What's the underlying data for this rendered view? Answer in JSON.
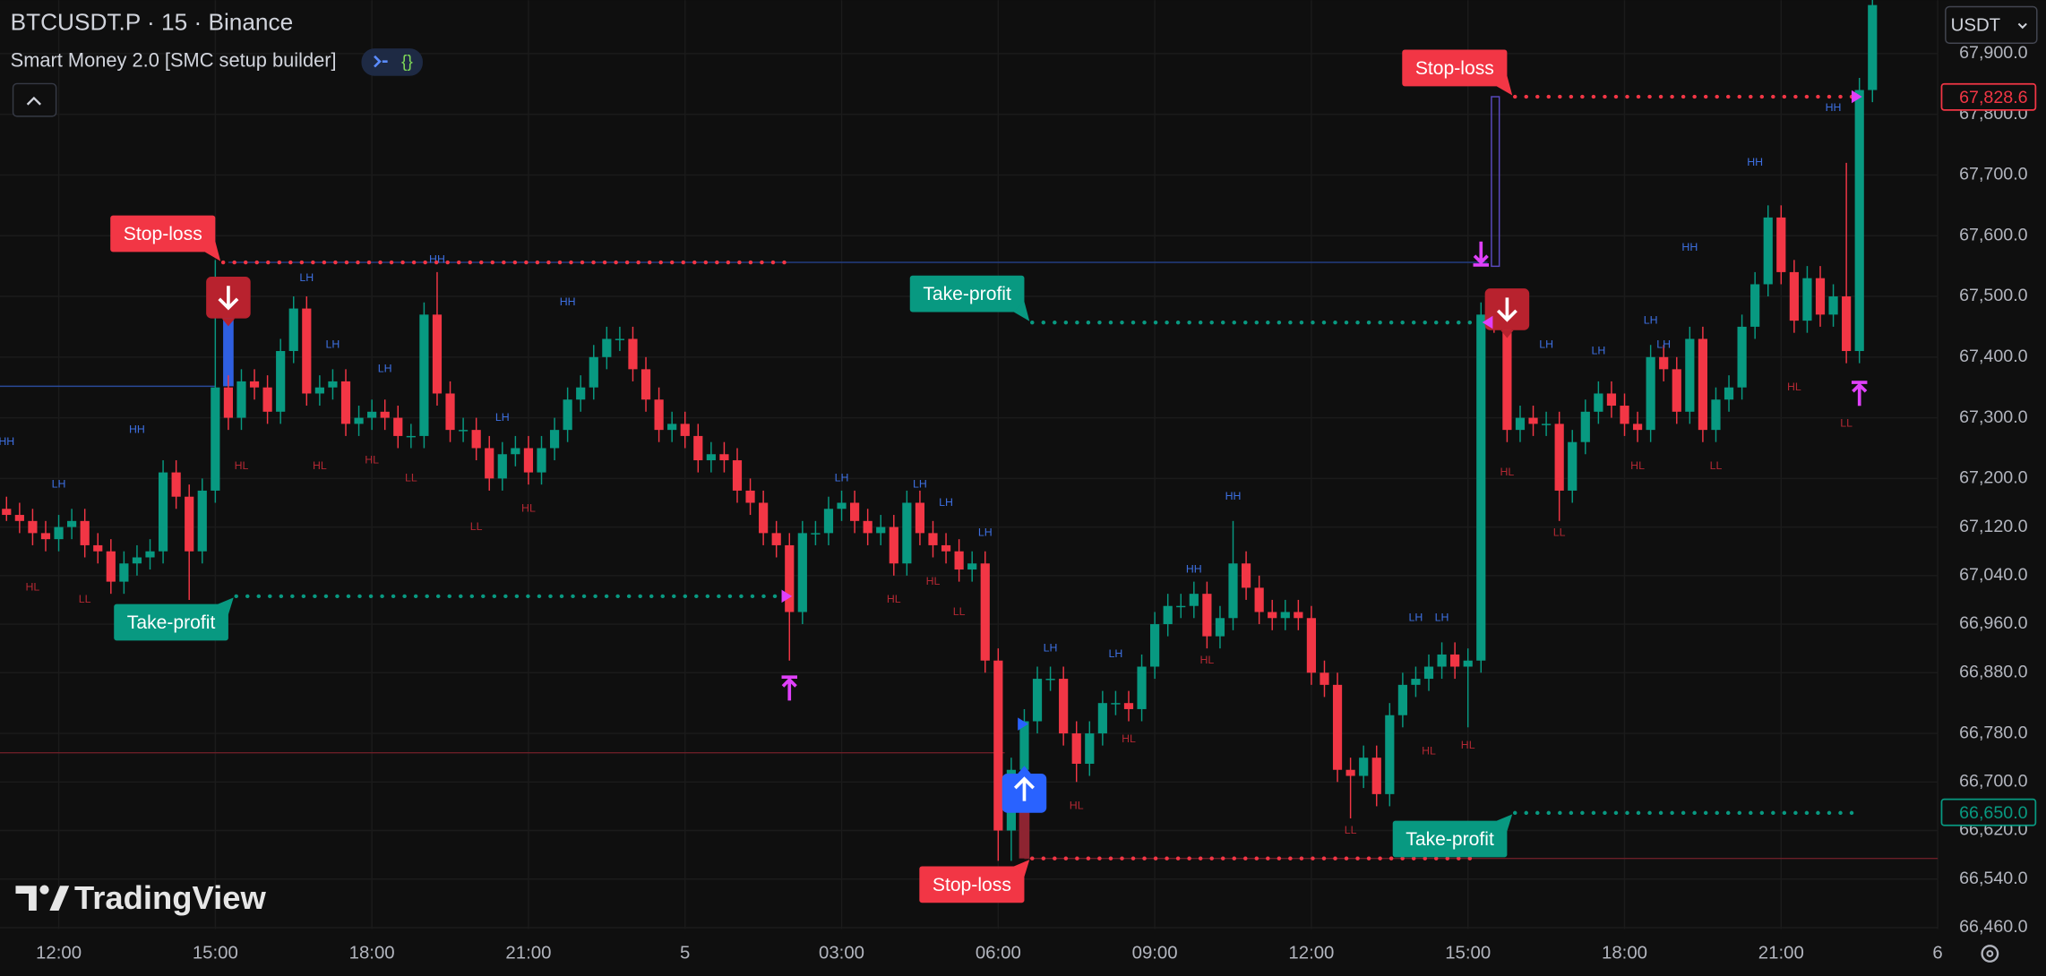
{
  "header": {
    "symbol": "BTCUSDT.P · 15 · Binance",
    "indicator": "Smart Money 2.0 [SMC setup builder]",
    "currency": "USDT",
    "watermark": "TradingView"
  },
  "chart_data": {
    "type": "candlestick",
    "up_color": "#089981",
    "down_color": "#f23645",
    "grid": true,
    "xlim": [
      -0.5,
      148
    ],
    "ylim": [
      66458,
      67988
    ],
    "xticks": [
      {
        "value": 4,
        "label": "12:00"
      },
      {
        "value": 16,
        "label": "15:00"
      },
      {
        "value": 28,
        "label": "18:00"
      },
      {
        "value": 40,
        "label": "21:00"
      },
      {
        "value": 52,
        "label": "5"
      },
      {
        "value": 64,
        "label": "03:00"
      },
      {
        "value": 76,
        "label": "06:00"
      },
      {
        "value": 88,
        "label": "09:00"
      },
      {
        "value": 100,
        "label": "12:00"
      },
      {
        "value": 112,
        "label": "15:00"
      },
      {
        "value": 124,
        "label": "18:00"
      },
      {
        "value": 136,
        "label": "21:00"
      },
      {
        "value": 148,
        "label": "6"
      }
    ],
    "yticks": [
      {
        "value": 67900,
        "label": "67,900.0"
      },
      {
        "value": 67800,
        "label": "67,800.0"
      },
      {
        "value": 67700,
        "label": "67,700.0"
      },
      {
        "value": 67600,
        "label": "67,600.0"
      },
      {
        "value": 67500,
        "label": "67,500.0"
      },
      {
        "value": 67400,
        "label": "67,400.0"
      },
      {
        "value": 67300,
        "label": "67,300.0"
      },
      {
        "value": 67200,
        "label": "67,200.0"
      },
      {
        "value": 67120,
        "label": "67,120.0"
      },
      {
        "value": 67040,
        "label": "67,040.0"
      },
      {
        "value": 66960,
        "label": "66,960.0"
      },
      {
        "value": 66880,
        "label": "66,880.0"
      },
      {
        "value": 66780,
        "label": "66,780.0"
      },
      {
        "value": 66700,
        "label": "66,700.0"
      },
      {
        "value": 66620,
        "label": "66,620.0"
      },
      {
        "value": 66540,
        "label": "66,540.0"
      },
      {
        "value": 66460,
        "label": "66,460.0"
      }
    ],
    "open": [
      67150,
      67140,
      67130,
      67110,
      67100,
      67120,
      67130,
      67090,
      67080,
      67030,
      67060,
      67070,
      67080,
      67210,
      67170,
      67080,
      67180,
      67350,
      67300,
      67360,
      67350,
      67310,
      67410,
      67480,
      67340,
      67350,
      67360,
      67290,
      67300,
      67310,
      67300,
      67270,
      67270,
      67470,
      67340,
      67280,
      67280,
      67250,
      67200,
      67240,
      67250,
      67210,
      67250,
      67280,
      67330,
      67350,
      67400,
      67430,
      67430,
      67380,
      67330,
      67280,
      67290,
      67270,
      67230,
      67240,
      67230,
      67180,
      67160,
      67110,
      67090,
      66980,
      67110,
      67110,
      67150,
      67160,
      67130,
      67110,
      67120,
      67060,
      67160,
      67110,
      67090,
      67080,
      67050,
      67060,
      66900,
      66620,
      66720,
      66800,
      66870,
      66870,
      66780,
      66730,
      66780,
      66830,
      66830,
      66820,
      66890,
      66960,
      66990,
      66990,
      67010,
      66940,
      66970,
      67060,
      67020,
      66980,
      66970,
      66980,
      66970,
      66880,
      66860,
      66720,
      66710,
      66740,
      66680,
      66810,
      66860,
      66870,
      66890,
      66910,
      66890,
      66900,
      67470,
      67460,
      67280,
      67300,
      67290,
      67290,
      67180,
      67260,
      67310,
      67340,
      67320,
      67290,
      67280,
      67400,
      67380,
      67310,
      67430,
      67280,
      67330,
      67350,
      67450,
      67520,
      67630,
      67540,
      67460,
      67530,
      67470,
      67500,
      67410,
      67840
    ],
    "high": [
      67170,
      67160,
      67150,
      67130,
      67140,
      67150,
      67150,
      67110,
      67100,
      67080,
      67090,
      67100,
      67230,
      67230,
      67190,
      67200,
      67560,
      67370,
      67380,
      67380,
      67370,
      67430,
      67500,
      67500,
      67370,
      67380,
      67380,
      67320,
      67330,
      67330,
      67320,
      67290,
      67490,
      67540,
      67360,
      67300,
      67300,
      67270,
      67260,
      67270,
      67270,
      67270,
      67300,
      67350,
      67370,
      67420,
      67450,
      67450,
      67450,
      67400,
      67350,
      67310,
      67310,
      67290,
      67260,
      67260,
      67250,
      67200,
      67180,
      67130,
      67110,
      67130,
      67130,
      67170,
      67180,
      67180,
      67150,
      67140,
      67140,
      67180,
      67180,
      67130,
      67110,
      67100,
      67080,
      67080,
      66920,
      66740,
      66820,
      66890,
      66890,
      66890,
      66800,
      66800,
      66850,
      66850,
      66850,
      66910,
      66980,
      67010,
      67010,
      67030,
      67030,
      66990,
      67130,
      67080,
      67040,
      67000,
      67000,
      67000,
      66990,
      66900,
      66880,
      66740,
      66760,
      66760,
      66830,
      66880,
      66890,
      66910,
      66930,
      66930,
      66920,
      67490,
      67490,
      67480,
      67320,
      67320,
      67310,
      67310,
      67280,
      67330,
      67360,
      67360,
      67340,
      67310,
      67420,
      67420,
      67400,
      67450,
      67450,
      67350,
      67370,
      67470,
      67540,
      67650,
      67650,
      67560,
      67550,
      67550,
      67520,
      67720,
      67860,
      68000
    ],
    "low": [
      67130,
      67110,
      67090,
      67080,
      67080,
      67100,
      67070,
      67060,
      67010,
      67010,
      67040,
      67050,
      67060,
      67150,
      67000,
      67060,
      67160,
      67280,
      67280,
      67330,
      67290,
      67290,
      67390,
      67320,
      67320,
      67330,
      67270,
      67270,
      67280,
      67280,
      67250,
      67250,
      67250,
      67320,
      67260,
      67260,
      67230,
      67180,
      67180,
      67220,
      67190,
      67190,
      67230,
      67260,
      67310,
      67330,
      67380,
      67410,
      67360,
      67310,
      67260,
      67260,
      67250,
      67210,
      67210,
      67210,
      67160,
      67140,
      67090,
      67070,
      66900,
      66960,
      67090,
      67090,
      67130,
      67110,
      67090,
      67090,
      67040,
      67040,
      67090,
      67070,
      67060,
      67030,
      67030,
      66880,
      66570,
      66570,
      66700,
      66780,
      66850,
      66760,
      66700,
      66710,
      66760,
      66810,
      66800,
      66800,
      66870,
      66940,
      66970,
      66970,
      66920,
      66920,
      66950,
      67000,
      66960,
      66950,
      66950,
      66950,
      66860,
      66840,
      66700,
      66640,
      66690,
      66660,
      66660,
      66790,
      66840,
      66850,
      66870,
      66870,
      66790,
      66880,
      67440,
      67260,
      67260,
      67270,
      67270,
      67130,
      67160,
      67240,
      67290,
      67300,
      67270,
      67260,
      67260,
      67360,
      67290,
      67290,
      67260,
      67260,
      67310,
      67330,
      67430,
      67500,
      67520,
      67440,
      67440,
      67450,
      67450,
      67390,
      67390,
      67820
    ],
    "close": [
      67140,
      67130,
      67110,
      67100,
      67120,
      67130,
      67090,
      67080,
      67030,
      67060,
      67070,
      67080,
      67210,
      67170,
      67080,
      67180,
      67350,
      67300,
      67360,
      67350,
      67310,
      67410,
      67480,
      67340,
      67350,
      67360,
      67290,
      67300,
      67310,
      67300,
      67270,
      67270,
      67470,
      67340,
      67280,
      67280,
      67250,
      67200,
      67240,
      67250,
      67210,
      67250,
      67280,
      67330,
      67350,
      67400,
      67430,
      67430,
      67380,
      67330,
      67280,
      67290,
      67270,
      67230,
      67240,
      67230,
      67180,
      67160,
      67110,
      67090,
      66980,
      67110,
      67110,
      67150,
      67160,
      67130,
      67110,
      67120,
      67060,
      67160,
      67110,
      67090,
      67080,
      67050,
      67060,
      66900,
      66620,
      66720,
      66800,
      66870,
      66870,
      66780,
      66730,
      66780,
      66830,
      66830,
      66820,
      66890,
      66960,
      66990,
      66990,
      67010,
      66940,
      66970,
      67060,
      67020,
      66980,
      66970,
      66980,
      66970,
      66880,
      66860,
      66720,
      66710,
      66740,
      66680,
      66810,
      66860,
      66870,
      66890,
      66910,
      66890,
      66900,
      67470,
      67460,
      67280,
      67300,
      67290,
      67290,
      67180,
      67260,
      67310,
      67340,
      67320,
      67290,
      67280,
      67400,
      67380,
      67310,
      67430,
      67280,
      67330,
      67350,
      67450,
      67520,
      67630,
      67540,
      67460,
      67530,
      67470,
      67500,
      67410,
      67840,
      67980
    ],
    "price_tags": [
      {
        "value": 67828.6,
        "label": "67,828.6",
        "color": "#f23645"
      },
      {
        "value": 66650,
        "label": "66,650.0",
        "color": "#089981"
      }
    ],
    "levels": [
      {
        "label": "Stop-loss",
        "price": 67556,
        "from": 16,
        "to": 60,
        "color": "#f23645"
      },
      {
        "label": "Take-profit",
        "price": 67006,
        "from": 17,
        "to": 59,
        "color": "#089981"
      },
      {
        "label": "Take-profit",
        "price": 67457,
        "from": 78,
        "to": 113,
        "color": "#089981"
      },
      {
        "label": "Stop-loss",
        "price": 66574,
        "from": 78,
        "to": 113,
        "color": "#f23645"
      },
      {
        "label": "Stop-loss",
        "price": 67829,
        "from": 115,
        "to": 142,
        "color": "#f23645"
      },
      {
        "label": "Take-profit",
        "price": 66649,
        "from": 115,
        "to": 142,
        "color": "#089981"
      }
    ],
    "structure_colors": {
      "high": "#3d6fe0",
      "low": "#b22833"
    },
    "structure_labels": [
      {
        "label": "HH",
        "index": 0,
        "price": 67260
      },
      {
        "label": "LH",
        "index": 4,
        "price": 67190
      },
      {
        "label": "HL",
        "index": 2,
        "price": 67020
      },
      {
        "label": "LL",
        "index": 6,
        "price": 67000
      },
      {
        "label": "HH",
        "index": 10,
        "price": 67280
      },
      {
        "label": "HL",
        "index": 18,
        "price": 67220
      },
      {
        "label": "LH",
        "index": 23,
        "price": 67530
      },
      {
        "label": "HL",
        "index": 24,
        "price": 67220
      },
      {
        "label": "LH",
        "index": 25,
        "price": 67420
      },
      {
        "label": "LH",
        "index": 29,
        "price": 67380
      },
      {
        "label": "HL",
        "index": 28,
        "price": 67230
      },
      {
        "label": "HH",
        "index": 33,
        "price": 67560
      },
      {
        "label": "LL",
        "index": 31,
        "price": 67200
      },
      {
        "label": "LH",
        "index": 38,
        "price": 67300
      },
      {
        "label": "LL",
        "index": 36,
        "price": 67120
      },
      {
        "label": "HL",
        "index": 40,
        "price": 67150
      },
      {
        "label": "HH",
        "index": 43,
        "price": 67490
      },
      {
        "label": "LH",
        "index": 64,
        "price": 67200
      },
      {
        "label": "LH",
        "index": 70,
        "price": 67190
      },
      {
        "label": "LH",
        "index": 72,
        "price": 67160
      },
      {
        "label": "LH",
        "index": 75,
        "price": 67110
      },
      {
        "label": "HL",
        "index": 68,
        "price": 67000
      },
      {
        "label": "HL",
        "index": 71,
        "price": 67030
      },
      {
        "label": "LL",
        "index": 73,
        "price": 66980
      },
      {
        "label": "LH",
        "index": 80,
        "price": 66920
      },
      {
        "label": "LH",
        "index": 85,
        "price": 66910
      },
      {
        "label": "HL",
        "index": 86,
        "price": 66770
      },
      {
        "label": "HL",
        "index": 82,
        "price": 66660
      },
      {
        "label": "HH",
        "index": 94,
        "price": 67170
      },
      {
        "label": "HH",
        "index": 91,
        "price": 67050
      },
      {
        "label": "HL",
        "index": 92,
        "price": 66900
      },
      {
        "label": "LH",
        "index": 108,
        "price": 66970
      },
      {
        "label": "LH",
        "index": 110,
        "price": 66970
      },
      {
        "label": "HL",
        "index": 109,
        "price": 66750
      },
      {
        "label": "HL",
        "index": 112,
        "price": 66760
      },
      {
        "label": "LL",
        "index": 103,
        "price": 66620
      },
      {
        "label": "LH",
        "index": 118,
        "price": 67420
      },
      {
        "label": "HL",
        "index": 115,
        "price": 67210
      },
      {
        "label": "LL",
        "index": 119,
        "price": 67110
      },
      {
        "label": "LH",
        "index": 122,
        "price": 67410
      },
      {
        "label": "LH",
        "index": 127,
        "price": 67420
      },
      {
        "label": "LH",
        "index": 126,
        "price": 67460
      },
      {
        "label": "HL",
        "index": 125,
        "price": 67220
      },
      {
        "label": "LL",
        "index": 131,
        "price": 67220
      },
      {
        "label": "HH",
        "index": 129,
        "price": 67580
      },
      {
        "label": "HH",
        "index": 134,
        "price": 67720
      },
      {
        "label": "HL",
        "index": 137,
        "price": 67350
      },
      {
        "label": "LL",
        "index": 141,
        "price": 67290
      },
      {
        "label": "HH",
        "index": 140,
        "price": 67810
      }
    ]
  }
}
